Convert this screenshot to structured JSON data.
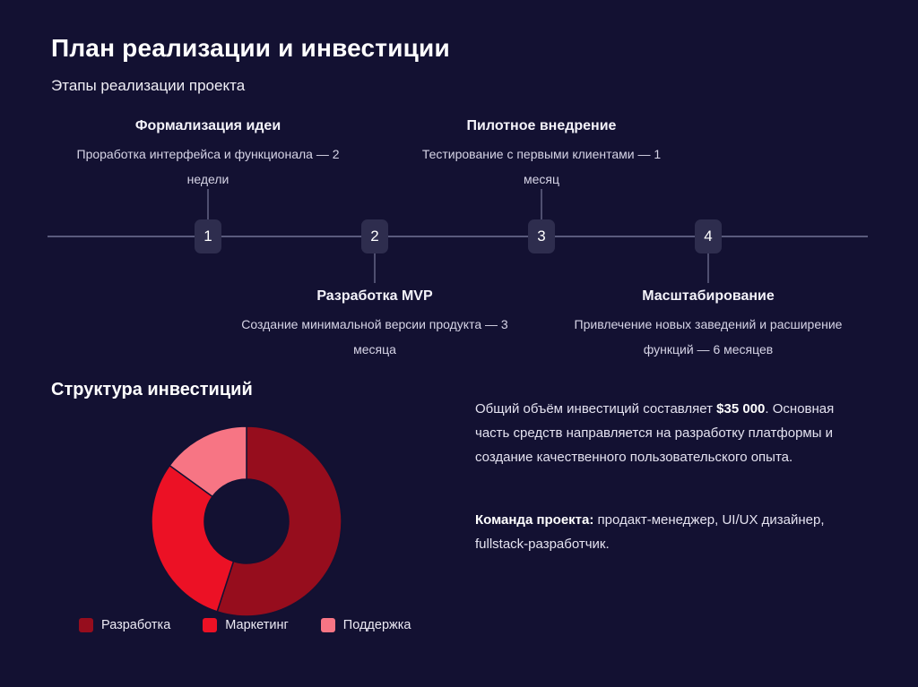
{
  "slide": {
    "title": "План реализации и инвестиции",
    "subtitle": "Этапы реализации проекта"
  },
  "timeline": {
    "stages": [
      {
        "number": "1",
        "side": "above",
        "title": "Формализация идеи",
        "description": "Проработка интерфейса и функционала — 2\nнедели"
      },
      {
        "number": "2",
        "side": "below",
        "title": "Разработка MVP",
        "description": "Создание минимальной версии продукта — 3\nмесяца"
      },
      {
        "number": "3",
        "side": "above",
        "title": "Пилотное внедрение",
        "description": "Тестирование с первыми клиентами — 1\nмесяц"
      },
      {
        "number": "4",
        "side": "below",
        "title": "Масштабирование",
        "description": "Привлечение новых заведений и расширение\nфункций — 6 месяцев"
      }
    ]
  },
  "investments": {
    "heading": "Структура инвестиций",
    "summary": {
      "text_before": "Общий объём инвестиций составляет ",
      "amount": "$35 000",
      "text_after": ". Основная\nчасть средств направляется на разработку платформы и\nсоздание качественного пользовательского опыта."
    },
    "team": {
      "label": "Команда проекта:",
      "text": " продакт-менеджер, UI/UX дизайнер,\nfullstack-разработчик."
    }
  },
  "chart_data": {
    "type": "pie",
    "subtype": "donut",
    "title": "Структура инвестиций",
    "unit": "%",
    "legend_position": "bottom",
    "start_angle_deg": 0,
    "direction": "clockwise",
    "slices": [
      {
        "label": "Разработка",
        "value": 55,
        "color": "#960d1d"
      },
      {
        "label": "Маркетинг",
        "value": 30,
        "color": "#ec1125"
      },
      {
        "label": "Поддержка",
        "value": 15,
        "color": "#f77584"
      }
    ]
  },
  "colors": {
    "background": "#131132",
    "timeline_line": "#5a5a7d",
    "badge_background": "#2e2d4e",
    "text_primary": "#ffffff",
    "text_muted": "#d6d4e6",
    "accent_dark_red": "#960d1d",
    "accent_red": "#ec1125",
    "accent_pink": "#f77584"
  }
}
